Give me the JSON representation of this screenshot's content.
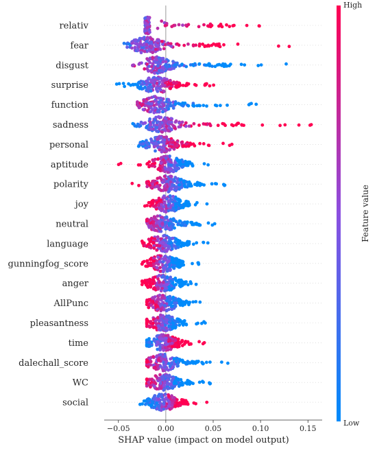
{
  "chart_data": {
    "type": "scatter",
    "subtype": "shap-beeswarm",
    "xlabel": "SHAP value (impact on model output)",
    "xlim": [
      -0.065,
      0.165
    ],
    "xticks": [
      -0.05,
      0.0,
      0.05,
      0.1,
      0.15
    ],
    "xtick_labels": [
      "−0.05",
      "0.00",
      "0.05",
      "0.10",
      "0.15"
    ],
    "colorbar": {
      "label": "Feature value",
      "high_label": "High",
      "low_label": "Low",
      "high_color": "#ff0052",
      "low_color": "#008bfb"
    },
    "features": [
      {
        "name": "relativ",
        "min": -0.022,
        "max": 0.148,
        "center": -0.02,
        "lowSide": "left"
      },
      {
        "name": "fear",
        "min": -0.045,
        "max": 0.135,
        "center": -0.02,
        "lowSide": "left"
      },
      {
        "name": "disgust",
        "min": -0.047,
        "max": 0.133,
        "center": -0.01,
        "lowSide": "right"
      },
      {
        "name": "surprise",
        "min": -0.052,
        "max": 0.052,
        "center": -0.01,
        "lowSide": "left"
      },
      {
        "name": "function",
        "min": -0.03,
        "max": 0.107,
        "center": -0.01,
        "lowSide": "right"
      },
      {
        "name": "sadness",
        "min": -0.038,
        "max": 0.155,
        "center": -0.005,
        "lowSide": "left"
      },
      {
        "name": "personal",
        "min": -0.033,
        "max": 0.072,
        "center": -0.005,
        "lowSide": "left"
      },
      {
        "name": "aptitude",
        "min": -0.05,
        "max": 0.045,
        "center": 0.002,
        "lowSide": "right"
      },
      {
        "name": "polarity",
        "min": -0.037,
        "max": 0.072,
        "center": 0.002,
        "lowSide": "right"
      },
      {
        "name": "joy",
        "min": -0.04,
        "max": 0.045,
        "center": 0.002,
        "lowSide": "right"
      },
      {
        "name": "neutral",
        "min": -0.02,
        "max": 0.07,
        "center": -0.005,
        "lowSide": "right"
      },
      {
        "name": "language",
        "min": -0.025,
        "max": 0.048,
        "center": -0.003,
        "lowSide": "right"
      },
      {
        "name": "gunningfog_score",
        "min": -0.025,
        "max": 0.036,
        "center": -0.003,
        "lowSide": "right"
      },
      {
        "name": "anger",
        "min": -0.025,
        "max": 0.036,
        "center": -0.003,
        "lowSide": "right"
      },
      {
        "name": "AllPunc",
        "min": -0.02,
        "max": 0.048,
        "center": -0.003,
        "lowSide": "right"
      },
      {
        "name": "pleasantness",
        "min": -0.02,
        "max": 0.042,
        "center": -0.003,
        "lowSide": "right"
      },
      {
        "name": "time",
        "min": -0.02,
        "max": 0.042,
        "center": -0.003,
        "lowSide": "left"
      },
      {
        "name": "dalechall_score",
        "min": -0.02,
        "max": 0.066,
        "center": -0.003,
        "lowSide": "right"
      },
      {
        "name": "WC",
        "min": -0.02,
        "max": 0.055,
        "center": -0.003,
        "lowSide": "right"
      },
      {
        "name": "social",
        "min": -0.03,
        "max": 0.045,
        "center": -0.003,
        "lowSide": "left"
      }
    ]
  }
}
